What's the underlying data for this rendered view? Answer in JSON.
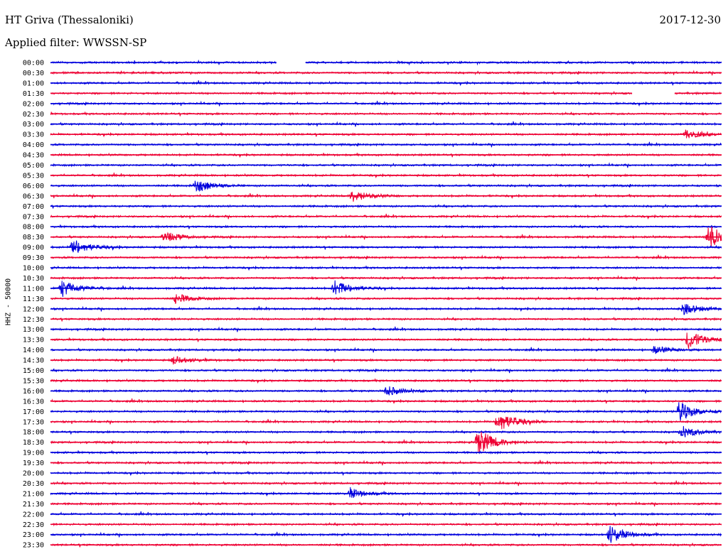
{
  "header": {
    "station": "HT Griva (Thessaloniki)",
    "date": "2017-12-30",
    "filter": "Applied filter: WWSSN-SP"
  },
  "colors": {
    "line_a": "#0000dd",
    "line_b": "#ee0033"
  },
  "chart_data": {
    "type": "line",
    "ylabel": "HHZ - 50000",
    "trace_times": [
      "00:00",
      "00:30",
      "01:00",
      "01:30",
      "02:00",
      "02:30",
      "03:00",
      "03:30",
      "04:00",
      "04:30",
      "05:00",
      "05:30",
      "06:00",
      "06:30",
      "07:00",
      "07:30",
      "08:00",
      "08:30",
      "09:00",
      "09:30",
      "10:00",
      "10:30",
      "11:00",
      "11:30",
      "12:00",
      "12:30",
      "13:00",
      "13:30",
      "14:00",
      "14:30",
      "15:00",
      "15:30",
      "16:00",
      "16:30",
      "17:00",
      "17:30",
      "18:00",
      "18:30",
      "19:00",
      "19:30",
      "20:00",
      "20:30",
      "21:00",
      "21:30",
      "22:00",
      "22:30",
      "23:00",
      "23:30"
    ],
    "trace_colors": [
      "blue",
      "red"
    ],
    "gaps": [
      {
        "trace": "00:00",
        "start_min": 10.1,
        "end_min": 11.4
      },
      {
        "trace": "01:30",
        "start_min": 26.0,
        "end_min": 27.9
      }
    ],
    "events": [
      {
        "trace": "03:30",
        "min": 28.4,
        "amp": 0.5
      },
      {
        "trace": "06:00",
        "min": 6.5,
        "amp": 0.7
      },
      {
        "trace": "06:30",
        "min": 13.5,
        "amp": 0.6
      },
      {
        "trace": "08:30",
        "min": 5.1,
        "amp": 0.5
      },
      {
        "trace": "08:30",
        "min": 29.4,
        "amp": 1.3
      },
      {
        "trace": "09:00",
        "min": 1.0,
        "amp": 0.8
      },
      {
        "trace": "11:00",
        "min": 0.5,
        "amp": 0.9
      },
      {
        "trace": "11:00",
        "min": 12.7,
        "amp": 0.8
      },
      {
        "trace": "11:30",
        "min": 5.6,
        "amp": 0.5
      },
      {
        "trace": "12:00",
        "min": 28.3,
        "amp": 0.6
      },
      {
        "trace": "13:30",
        "min": 28.5,
        "amp": 1.0
      },
      {
        "trace": "14:00",
        "min": 27.0,
        "amp": 0.4
      },
      {
        "trace": "14:30",
        "min": 5.5,
        "amp": 0.4
      },
      {
        "trace": "16:00",
        "min": 15.0,
        "amp": 0.5
      },
      {
        "trace": "17:00",
        "min": 28.1,
        "amp": 1.0
      },
      {
        "trace": "17:30",
        "min": 20.0,
        "amp": 1.1
      },
      {
        "trace": "18:00",
        "min": 28.2,
        "amp": 0.6
      },
      {
        "trace": "18:30",
        "min": 19.1,
        "amp": 1.4
      },
      {
        "trace": "21:00",
        "min": 13.4,
        "amp": 0.5
      },
      {
        "trace": "23:00",
        "min": 25.0,
        "amp": 0.9
      }
    ]
  }
}
